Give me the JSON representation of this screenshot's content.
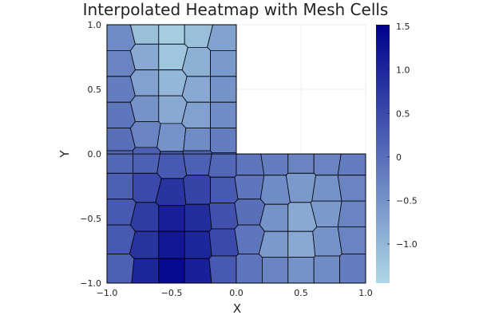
{
  "chart_data": {
    "type": "heatmap",
    "title": "Interpolated Heatmap with Mesh Cells",
    "xlabel": "X",
    "ylabel": "Y",
    "xlim": [
      -1.0,
      1.0
    ],
    "ylim": [
      -1.0,
      1.0
    ],
    "x_ticks": [
      "−1.0",
      "−0.5",
      "0.0",
      "0.5",
      "1.0"
    ],
    "y_ticks": [
      "−1.0",
      "−0.5",
      "0.0",
      "0.5",
      "1.0"
    ],
    "domain": "L-shaped region: [-1,1]x[-1,0] union [-1,0]x[0,1]",
    "grid": true,
    "colorbar": {
      "range": [
        -1.45,
        1.52
      ],
      "ticks": [
        "−1.0",
        "−0.5",
        "0",
        "0.5",
        "1.0",
        "1.5"
      ],
      "tick_values": [
        -1.0,
        -0.5,
        0,
        0.5,
        1.0,
        1.5
      ],
      "colormap": [
        "#add8e6",
        "#00008b"
      ]
    },
    "cells": [
      {
        "x": -0.9,
        "y": 0.9,
        "v": -0.4
      },
      {
        "x": -0.7,
        "y": 0.95,
        "v": -1.1
      },
      {
        "x": -0.5,
        "y": 0.95,
        "v": -1.3
      },
      {
        "x": -0.3,
        "y": 0.95,
        "v": -1.1
      },
      {
        "x": -0.1,
        "y": 0.9,
        "v": -0.7
      },
      {
        "x": -0.9,
        "y": 0.7,
        "v": -0.3
      },
      {
        "x": -0.7,
        "y": 0.75,
        "v": -0.8
      },
      {
        "x": -0.5,
        "y": 0.75,
        "v": -1.2
      },
      {
        "x": -0.3,
        "y": 0.7,
        "v": -0.9
      },
      {
        "x": -0.1,
        "y": 0.7,
        "v": -0.6
      },
      {
        "x": -0.9,
        "y": 0.5,
        "v": -0.2
      },
      {
        "x": -0.7,
        "y": 0.55,
        "v": -0.7
      },
      {
        "x": -0.5,
        "y": 0.55,
        "v": -1.0
      },
      {
        "x": -0.3,
        "y": 0.5,
        "v": -0.8
      },
      {
        "x": -0.1,
        "y": 0.5,
        "v": -0.5
      },
      {
        "x": -0.9,
        "y": 0.3,
        "v": -0.1
      },
      {
        "x": -0.7,
        "y": 0.35,
        "v": -0.5
      },
      {
        "x": -0.5,
        "y": 0.35,
        "v": -0.8
      },
      {
        "x": -0.3,
        "y": 0.3,
        "v": -0.7
      },
      {
        "x": -0.1,
        "y": 0.3,
        "v": -0.4
      },
      {
        "x": -0.9,
        "y": 0.1,
        "v": 0.0
      },
      {
        "x": -0.7,
        "y": 0.15,
        "v": -0.3
      },
      {
        "x": -0.5,
        "y": 0.12,
        "v": -0.5
      },
      {
        "x": -0.3,
        "y": 0.1,
        "v": -0.4
      },
      {
        "x": -0.1,
        "y": 0.1,
        "v": -0.2
      },
      {
        "x": -0.9,
        "y": -0.05,
        "v": 0.1
      },
      {
        "x": -0.7,
        "y": -0.05,
        "v": 0.2
      },
      {
        "x": -0.5,
        "y": -0.08,
        "v": 0.3
      },
      {
        "x": -0.3,
        "y": -0.05,
        "v": 0.2
      },
      {
        "x": -0.1,
        "y": -0.08,
        "v": 0.1
      },
      {
        "x": 0.1,
        "y": -0.08,
        "v": -0.1
      },
      {
        "x": 0.3,
        "y": -0.05,
        "v": -0.2
      },
      {
        "x": 0.5,
        "y": -0.05,
        "v": -0.3
      },
      {
        "x": 0.7,
        "y": -0.05,
        "v": -0.3
      },
      {
        "x": 0.9,
        "y": -0.08,
        "v": -0.2
      },
      {
        "x": -0.9,
        "y": -0.25,
        "v": 0.2
      },
      {
        "x": -0.7,
        "y": -0.25,
        "v": 0.5
      },
      {
        "x": -0.5,
        "y": -0.3,
        "v": 0.8
      },
      {
        "x": -0.3,
        "y": -0.28,
        "v": 0.6
      },
      {
        "x": -0.1,
        "y": -0.28,
        "v": 0.3
      },
      {
        "x": 0.1,
        "y": -0.25,
        "v": -0.1
      },
      {
        "x": 0.3,
        "y": -0.28,
        "v": -0.4
      },
      {
        "x": 0.5,
        "y": -0.25,
        "v": -0.6
      },
      {
        "x": 0.7,
        "y": -0.28,
        "v": -0.5
      },
      {
        "x": 0.9,
        "y": -0.25,
        "v": -0.3
      },
      {
        "x": -0.9,
        "y": -0.45,
        "v": 0.3
      },
      {
        "x": -0.7,
        "y": -0.5,
        "v": 0.7
      },
      {
        "x": -0.5,
        "y": -0.5,
        "v": 1.1
      },
      {
        "x": -0.3,
        "y": -0.5,
        "v": 0.9
      },
      {
        "x": -0.1,
        "y": -0.48,
        "v": 0.4
      },
      {
        "x": 0.1,
        "y": -0.45,
        "v": 0.0
      },
      {
        "x": 0.3,
        "y": -0.5,
        "v": -0.5
      },
      {
        "x": 0.5,
        "y": -0.5,
        "v": -0.8
      },
      {
        "x": 0.7,
        "y": -0.45,
        "v": -0.6
      },
      {
        "x": 0.9,
        "y": -0.48,
        "v": -0.3
      },
      {
        "x": -0.9,
        "y": -0.65,
        "v": 0.3
      },
      {
        "x": -0.7,
        "y": -0.7,
        "v": 0.8
      },
      {
        "x": -0.5,
        "y": -0.7,
        "v": 1.2
      },
      {
        "x": -0.3,
        "y": -0.7,
        "v": 1.0
      },
      {
        "x": -0.1,
        "y": -0.68,
        "v": 0.5
      },
      {
        "x": 0.1,
        "y": -0.65,
        "v": -0.1
      },
      {
        "x": 0.3,
        "y": -0.7,
        "v": -0.6
      },
      {
        "x": 0.5,
        "y": -0.7,
        "v": -0.8
      },
      {
        "x": 0.7,
        "y": -0.68,
        "v": -0.5
      },
      {
        "x": 0.9,
        "y": -0.65,
        "v": -0.3
      },
      {
        "x": -0.9,
        "y": -0.9,
        "v": 0.2
      },
      {
        "x": -0.7,
        "y": -0.92,
        "v": 1.0
      },
      {
        "x": -0.5,
        "y": -0.92,
        "v": 1.4
      },
      {
        "x": -0.3,
        "y": -0.92,
        "v": 1.1
      },
      {
        "x": -0.1,
        "y": -0.9,
        "v": 0.3
      },
      {
        "x": 0.1,
        "y": -0.9,
        "v": -0.1
      },
      {
        "x": 0.3,
        "y": -0.9,
        "v": -0.3
      },
      {
        "x": 0.5,
        "y": -0.9,
        "v": -0.5
      },
      {
        "x": 0.7,
        "y": -0.9,
        "v": -0.4
      },
      {
        "x": 0.9,
        "y": -0.9,
        "v": -0.2
      }
    ]
  }
}
